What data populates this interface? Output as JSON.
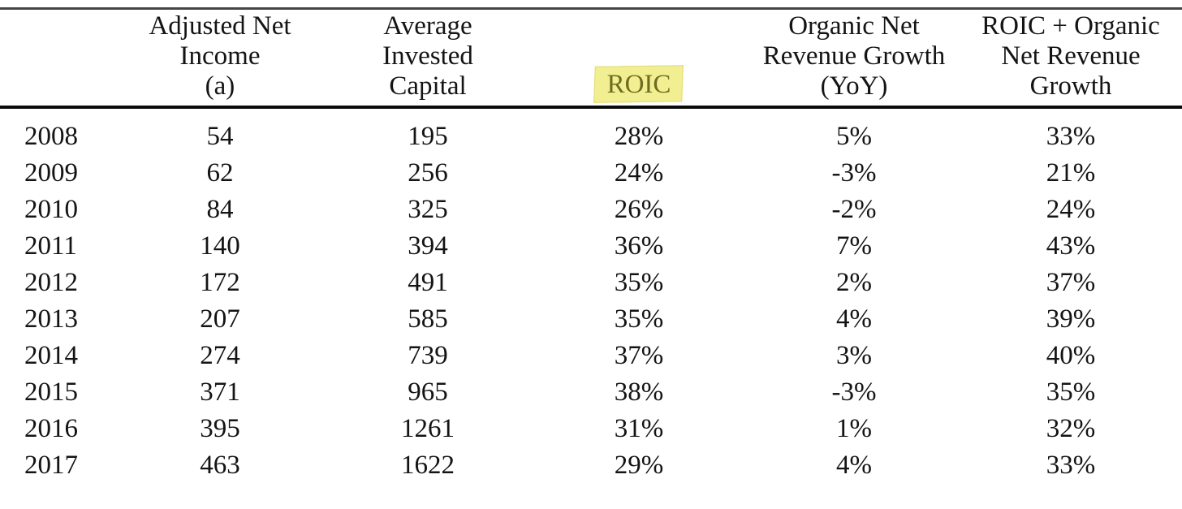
{
  "table": {
    "header": {
      "year": "",
      "adjusted_net_income": [
        "Adjusted Net",
        "Income",
        "(a)"
      ],
      "average_invested_capital": [
        "Average",
        "Invested",
        "Capital"
      ],
      "roic": [
        "ROIC"
      ],
      "organic_growth": [
        "Organic Net",
        "Revenue Growth",
        "(YoY)"
      ],
      "roic_plus_growth": [
        "ROIC + Organic",
        "Net Revenue",
        "Growth"
      ]
    },
    "highlight": {
      "target": "roic",
      "fill_color": "#f2ee92",
      "text_color": "#6e6c20"
    },
    "rows": [
      {
        "year": "2008",
        "adjusted_net_income": "54",
        "average_invested_capital": "195",
        "roic": "28%",
        "organic_growth": "5%",
        "roic_plus_growth": "33%"
      },
      {
        "year": "2009",
        "adjusted_net_income": "62",
        "average_invested_capital": "256",
        "roic": "24%",
        "organic_growth": "-3%",
        "roic_plus_growth": "21%"
      },
      {
        "year": "2010",
        "adjusted_net_income": "84",
        "average_invested_capital": "325",
        "roic": "26%",
        "organic_growth": "-2%",
        "roic_plus_growth": "24%"
      },
      {
        "year": "2011",
        "adjusted_net_income": "140",
        "average_invested_capital": "394",
        "roic": "36%",
        "organic_growth": "7%",
        "roic_plus_growth": "43%"
      },
      {
        "year": "2012",
        "adjusted_net_income": "172",
        "average_invested_capital": "491",
        "roic": "35%",
        "organic_growth": "2%",
        "roic_plus_growth": "37%"
      },
      {
        "year": "2013",
        "adjusted_net_income": "207",
        "average_invested_capital": "585",
        "roic": "35%",
        "organic_growth": "4%",
        "roic_plus_growth": "39%"
      },
      {
        "year": "2014",
        "adjusted_net_income": "274",
        "average_invested_capital": "739",
        "roic": "37%",
        "organic_growth": "3%",
        "roic_plus_growth": "40%"
      },
      {
        "year": "2015",
        "adjusted_net_income": "371",
        "average_invested_capital": "965",
        "roic": "38%",
        "organic_growth": "-3%",
        "roic_plus_growth": "35%"
      },
      {
        "year": "2016",
        "adjusted_net_income": "395",
        "average_invested_capital": "1261",
        "roic": "31%",
        "organic_growth": "1%",
        "roic_plus_growth": "32%"
      },
      {
        "year": "2017",
        "adjusted_net_income": "463",
        "average_invested_capital": "1622",
        "roic": "29%",
        "organic_growth": "4%",
        "roic_plus_growth": "33%"
      }
    ]
  },
  "colors": {
    "text": "#141414",
    "top_rule": "#454545",
    "header_rule": "#0a0a0a",
    "highlight_fill": "#f2ee92",
    "highlight_text": "#6e6c20"
  }
}
